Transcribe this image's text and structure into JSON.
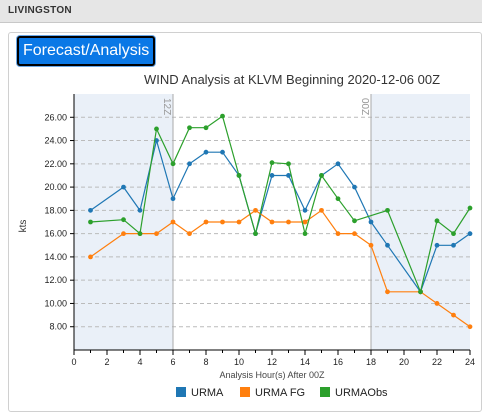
{
  "header": {
    "location": "LIVINGSTON"
  },
  "tab": {
    "label": "Forecast/Analysis"
  },
  "chart_data": {
    "type": "line",
    "title": "WIND Analysis at KLVM Beginning 2020-12-06 00Z",
    "xlabel": "Analysis Hour(s) After 00Z",
    "ylabel": "kts",
    "xlim": [
      0,
      24
    ],
    "ylim": [
      6,
      28
    ],
    "xticks": [
      0,
      2,
      4,
      6,
      8,
      10,
      12,
      14,
      16,
      18,
      20,
      22,
      24
    ],
    "yticks": [
      8,
      10,
      12,
      14,
      16,
      18,
      20,
      22,
      24,
      26
    ],
    "grid": "horizontal-dashed",
    "legend": "bottom",
    "shaded_ranges": [
      [
        0,
        6
      ],
      [
        18,
        24
      ]
    ],
    "markers": [
      {
        "x": 6,
        "label": "12Z"
      },
      {
        "x": 18,
        "label": "00Z"
      }
    ],
    "series": [
      {
        "name": "URMA",
        "color": "#1f77b4",
        "points": [
          [
            1,
            18
          ],
          [
            3,
            20
          ],
          [
            4,
            18
          ],
          [
            5,
            24
          ],
          [
            6,
            19
          ],
          [
            7,
            22
          ],
          [
            8,
            23
          ],
          [
            9,
            23
          ],
          [
            10,
            21
          ],
          [
            11,
            16
          ],
          [
            12,
            21
          ],
          [
            13,
            21
          ],
          [
            14,
            18
          ],
          [
            15,
            21
          ],
          [
            16,
            22
          ],
          [
            17,
            20
          ],
          [
            18,
            17
          ],
          [
            19,
            15
          ],
          [
            21,
            11
          ],
          [
            22,
            15
          ],
          [
            23,
            15
          ],
          [
            24,
            16
          ]
        ]
      },
      {
        "name": "URMA FG",
        "color": "#ff7f0e",
        "points": [
          [
            1,
            14
          ],
          [
            3,
            16
          ],
          [
            4,
            16
          ],
          [
            5,
            16
          ],
          [
            6,
            17
          ],
          [
            7,
            16
          ],
          [
            8,
            17
          ],
          [
            9,
            17
          ],
          [
            10,
            17
          ],
          [
            11,
            18
          ],
          [
            12,
            17
          ],
          [
            13,
            17
          ],
          [
            14,
            17
          ],
          [
            15,
            18
          ],
          [
            16,
            16
          ],
          [
            17,
            16
          ],
          [
            18,
            15
          ],
          [
            19,
            11
          ],
          [
            21,
            11
          ],
          [
            22,
            10
          ],
          [
            23,
            9
          ],
          [
            24,
            8
          ]
        ]
      },
      {
        "name": "URMAObs",
        "color": "#2ca02c",
        "points": [
          [
            1,
            17
          ],
          [
            3,
            17.2
          ],
          [
            4,
            16
          ],
          [
            5,
            25
          ],
          [
            6,
            22
          ],
          [
            7,
            25.1
          ],
          [
            8,
            25.1
          ],
          [
            9,
            26.1
          ],
          [
            10,
            21
          ],
          [
            11,
            16
          ],
          [
            12,
            22.1
          ],
          [
            13,
            22
          ],
          [
            14,
            16
          ],
          [
            15,
            21
          ],
          [
            16,
            19
          ],
          [
            17,
            17.1
          ],
          [
            19,
            18
          ],
          [
            21,
            11
          ],
          [
            22,
            17.1
          ],
          [
            23,
            16
          ],
          [
            24,
            18.2
          ]
        ]
      }
    ]
  }
}
